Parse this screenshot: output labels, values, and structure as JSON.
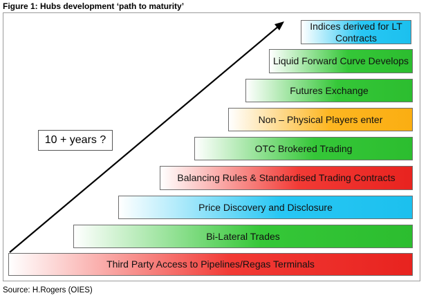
{
  "figure": {
    "title": "Figure 1: Hubs development ‘path to maturity’",
    "source": "Source: H.Rogers (OIES)",
    "time_label": "10 + years ?"
  },
  "stages": [
    {
      "label": "Third Party Access to Pipelines/Regas Terminals",
      "color": "red"
    },
    {
      "label": "Bi-Lateral Trades",
      "color": "green"
    },
    {
      "label": "Price Discovery and Disclosure",
      "color": "blue"
    },
    {
      "label": "Balancing Rules & Standardised Trading Contracts",
      "color": "red"
    },
    {
      "label": "OTC Brokered Trading",
      "color": "green"
    },
    {
      "label": "Non – Physical Players enter",
      "color": "orange"
    },
    {
      "label": "Futures Exchange",
      "color": "green"
    },
    {
      "label": "Liquid Forward Curve Develops",
      "color": "green"
    },
    {
      "label": "Indices derived for LT Contracts",
      "color": "blue"
    }
  ],
  "colors": {
    "red": "#e8231f",
    "green": "#2cbd2f",
    "blue": "#1cc0ee",
    "orange": "#fbae12",
    "arrow": "#000000"
  }
}
